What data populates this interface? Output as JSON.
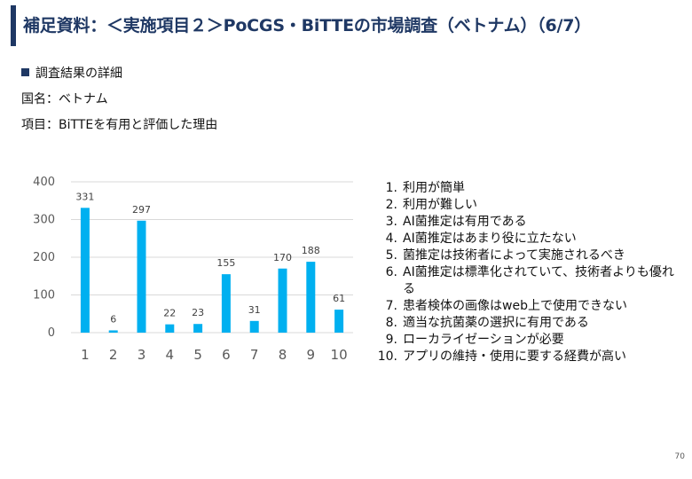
{
  "title": "補足資料：＜実施項目２＞PoCGS・BiTTEの市場調査（ベトナム）（6/7）",
  "section_heading": "調査結果の詳細",
  "country_line": "国名：ベトナム",
  "item_line": "項目：BiTTEを有用と評価した理由",
  "page_number": "70",
  "colors": {
    "title": "#1f3864",
    "bar": "#00b0f0",
    "grid": "#d9d9d9"
  },
  "chart_data": {
    "type": "bar",
    "categories": [
      "1",
      "2",
      "3",
      "4",
      "5",
      "6",
      "7",
      "8",
      "9",
      "10"
    ],
    "values": [
      331,
      6,
      297,
      22,
      23,
      155,
      31,
      170,
      188,
      61
    ],
    "ylim": [
      0,
      400
    ],
    "yticks": [
      0,
      100,
      200,
      300,
      400
    ],
    "grid": true,
    "title": "",
    "xlabel": "",
    "ylabel": ""
  },
  "legend_items": [
    {
      "num": "1.",
      "text": "利用が簡単"
    },
    {
      "num": "2.",
      "text": "利用が難しい"
    },
    {
      "num": "3.",
      "text": "AI菌推定は有用である"
    },
    {
      "num": "4.",
      "text": "AI菌推定はあまり役に立たない"
    },
    {
      "num": "5.",
      "text": "菌推定は技術者によって実施されるべき"
    },
    {
      "num": "6.",
      "text": "AI菌推定は標準化されていて、技術者よりも優れる"
    },
    {
      "num": "7.",
      "text": "患者検体の画像はweb上で使用できない"
    },
    {
      "num": "8.",
      "text": "適当な抗菌薬の選択に有用である"
    },
    {
      "num": "9.",
      "text": "ローカライゼーションが必要"
    },
    {
      "num": "10.",
      "text": "アプリの維持・使用に要する経費が高い"
    }
  ]
}
